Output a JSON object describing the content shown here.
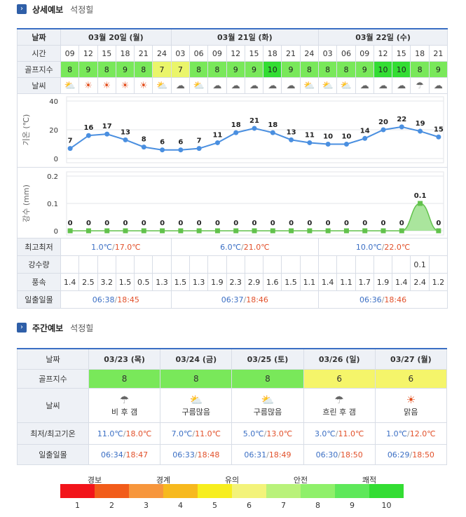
{
  "detail": {
    "section_title": "상세예보",
    "location": "석정힐",
    "labels": {
      "date": "날짜",
      "time": "시간",
      "golf": "골프지수",
      "weather": "날씨",
      "temp_axis": "기온 (℃)",
      "rain_axis": "강수 (mm)",
      "minmax": "최고최저",
      "rain": "강수량",
      "wind": "풍속",
      "sun": "일출일몰"
    },
    "days": [
      {
        "label": "03월 20일 (월)",
        "minmax_lo": "1.0℃",
        "minmax_hi": "17.0℃",
        "sunrise": "06:38",
        "sunset": "18:45"
      },
      {
        "label": "03월 21일 (화)",
        "minmax_lo": "6.0℃",
        "minmax_hi": "21.0℃",
        "sunrise": "06:37",
        "sunset": "18:46"
      },
      {
        "label": "03월 22일 (수)",
        "minmax_lo": "10.0℃",
        "minmax_hi": "22.0℃",
        "sunrise": "06:36",
        "sunset": "18:46"
      }
    ],
    "times": [
      "09",
      "12",
      "15",
      "18",
      "21",
      "24",
      "03",
      "06",
      "09",
      "12",
      "15",
      "18",
      "21",
      "24",
      "03",
      "06",
      "09",
      "12",
      "15",
      "18",
      "21"
    ],
    "golf": [
      "8",
      "9",
      "8",
      "9",
      "8",
      "7",
      "7",
      "8",
      "8",
      "9",
      "9",
      "10",
      "9",
      "8",
      "8",
      "8",
      "9",
      "10",
      "10",
      "8",
      "9"
    ],
    "weather_icons": [
      "partly-cloudy-icon",
      "sun-icon",
      "sun-icon",
      "sun-icon",
      "sun-icon",
      "partly-cloudy-icon",
      "cloud-icon",
      "partly-cloudy-icon",
      "cloud-icon",
      "cloud-icon",
      "cloud-icon",
      "cloud-icon",
      "cloud-icon",
      "partly-cloudy-icon",
      "partly-cloudy-icon",
      "partly-cloudy-icon",
      "cloud-icon",
      "cloud-icon",
      "cloud-icon",
      "rain-cloud-icon",
      "cloud-icon"
    ],
    "rain": [
      "",
      "",
      "",
      "",
      "",
      "",
      "",
      "",
      "",
      "",
      "",
      "",
      "",
      "",
      "",
      "",
      "",
      "",
      "",
      "0.1",
      ""
    ],
    "wind": [
      "1.4",
      "2.5",
      "3.2",
      "1.5",
      "0.5",
      "1.3",
      "1.5",
      "1.3",
      "1.9",
      "2.3",
      "2.9",
      "1.6",
      "1.5",
      "1.1",
      "1.4",
      "1.1",
      "1.7",
      "1.9",
      "1.4",
      "2.4",
      "1.2"
    ]
  },
  "chart_data": [
    {
      "type": "line",
      "ylabel": "기온 (℃)",
      "ylim": [
        0,
        40
      ],
      "yticks": [
        "0",
        "20",
        "40"
      ],
      "values": [
        7,
        16,
        17,
        13,
        8,
        6,
        6,
        7,
        11,
        18,
        21,
        18,
        13,
        11,
        10,
        10,
        14,
        20,
        22,
        19,
        15
      ]
    },
    {
      "type": "area",
      "ylabel": "강수 (mm)",
      "ylim": [
        0,
        0.2
      ],
      "yticks": [
        "0",
        "0.1",
        "0.2"
      ],
      "values": [
        0,
        0,
        0,
        0,
        0,
        0,
        0,
        0,
        0,
        0,
        0,
        0,
        0,
        0,
        0,
        0,
        0,
        0,
        0,
        0.1,
        0
      ],
      "point_labels": [
        "0",
        "0",
        "0",
        "0",
        "0",
        "0",
        "0",
        "0",
        "0",
        "0",
        "0",
        "0",
        "0",
        "0",
        "0",
        "0",
        "0",
        "0",
        "0",
        "0.1",
        "0"
      ]
    }
  ],
  "weekly": {
    "section_title": "주간예보",
    "location": "석정힐",
    "labels": {
      "date": "날짜",
      "golf": "골프지수",
      "weather": "날씨",
      "minmax": "최저/최고기온",
      "sun": "일출일몰"
    },
    "days": [
      {
        "date": "03/23 (목)",
        "golf": "8",
        "golf_color": "#79e85a",
        "icon": "rain-cloud-icon",
        "desc": "비 후 갬",
        "lo": "11.0℃",
        "hi": "18.0℃",
        "sunrise": "06:34",
        "sunset": "18:47"
      },
      {
        "date": "03/24 (금)",
        "golf": "8",
        "golf_color": "#79e85a",
        "icon": "partly-cloudy-icon",
        "desc": "구름많음",
        "lo": "7.0℃",
        "hi": "11.0℃",
        "sunrise": "06:33",
        "sunset": "18:48"
      },
      {
        "date": "03/25 (토)",
        "golf": "8",
        "golf_color": "#79e85a",
        "icon": "partly-cloudy-icon",
        "desc": "구름많음",
        "lo": "5.0℃",
        "hi": "13.0℃",
        "sunrise": "06:31",
        "sunset": "18:49"
      },
      {
        "date": "03/26 (일)",
        "golf": "6",
        "golf_color": "#f5f56a",
        "icon": "rain-cloud-icon",
        "desc": "흐린 후 갬",
        "lo": "3.0℃",
        "hi": "11.0℃",
        "sunrise": "06:30",
        "sunset": "18:50"
      },
      {
        "date": "03/27 (월)",
        "golf": "6",
        "golf_color": "#f5f56a",
        "icon": "sun-icon",
        "desc": "맑음",
        "lo": "1.0℃",
        "hi": "12.0℃",
        "sunrise": "06:29",
        "sunset": "18:50"
      }
    ]
  },
  "scale": {
    "labels": [
      "경보",
      "경계",
      "유의",
      "안전",
      "쾌적"
    ],
    "numbers": [
      "1",
      "2",
      "3",
      "4",
      "5",
      "6",
      "7",
      "8",
      "9",
      "10"
    ],
    "colors": [
      "#f2141a",
      "#f25c1a",
      "#f7963c",
      "#f7b91e",
      "#f7ee1e",
      "#f3f37a",
      "#b9f27a",
      "#8ff06a",
      "#5ee85a",
      "#33dd33"
    ]
  },
  "golf_colors": {
    "7": "#eaf56a",
    "8": "#79e85a",
    "9": "#79e85a",
    "10": "#33dd33"
  }
}
